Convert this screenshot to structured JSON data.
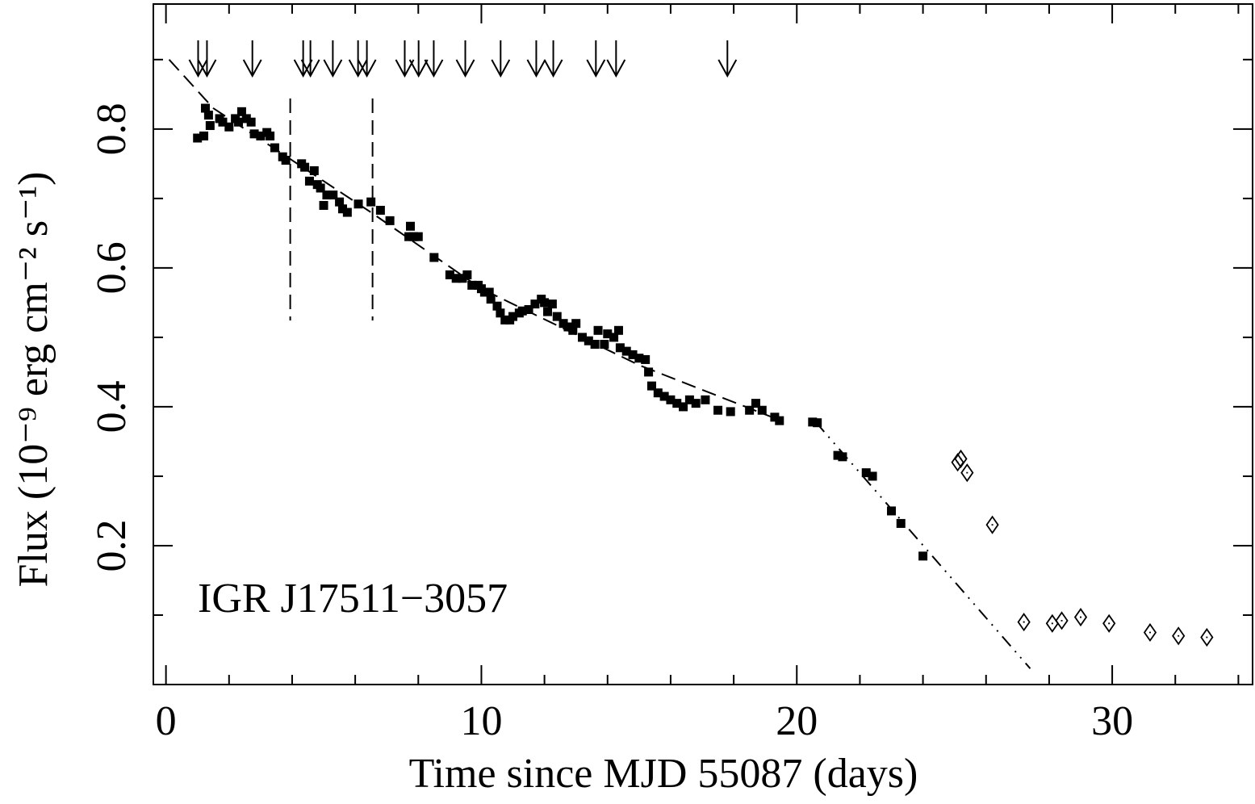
{
  "chart_data": {
    "type": "scatter",
    "xlabel": "Time since MJD 55087 (days)",
    "ylabel": "Flux (10⁻⁹ erg cm⁻² s⁻¹)",
    "annotation": "IGR J17511−3057",
    "xlim": [
      -0.4,
      34.45
    ],
    "ylim": [
      0,
      0.98
    ],
    "xticks": [
      0,
      10,
      20,
      30
    ],
    "xminorticks": [
      2,
      4,
      6,
      8,
      12,
      14,
      16,
      18,
      22,
      24,
      26,
      28,
      32,
      34
    ],
    "yticks": [
      0.2,
      0.4,
      0.6,
      0.8
    ],
    "yminorticks": [
      0.1,
      0.3,
      0.5,
      0.7,
      0.9
    ],
    "series": [
      {
        "marker": "square",
        "color": "#000000",
        "x": [
          1.0,
          1.2,
          1.25,
          1.35,
          1.4,
          1.7,
          1.8,
          2.0,
          2.2,
          2.3,
          2.4,
          2.55,
          2.7,
          2.8,
          3.0,
          3.2,
          3.3,
          3.45,
          3.7,
          3.8,
          4.3,
          4.4,
          4.55,
          4.7,
          4.8,
          4.9,
          5.0,
          5.1,
          5.3,
          5.5,
          5.6,
          5.75,
          6.1,
          6.5,
          6.8,
          7.1,
          7.7,
          7.75,
          7.85,
          8.0,
          8.5,
          9.0,
          9.2,
          9.4,
          9.55,
          9.7,
          9.9,
          10.0,
          10.1,
          10.25,
          10.3,
          10.5,
          10.6,
          10.75,
          10.9,
          11.0,
          11.2,
          11.3,
          11.5,
          11.7,
          11.9,
          12.0,
          12.1,
          12.25,
          12.4,
          12.6,
          12.75,
          12.9,
          13.0,
          13.2,
          13.4,
          13.6,
          13.7,
          13.9,
          14.0,
          14.2,
          14.35,
          14.4,
          14.6,
          14.8,
          15.0,
          15.2,
          15.3,
          15.4,
          15.6,
          15.8,
          16.0,
          16.2,
          16.4,
          16.6,
          16.8,
          17.1,
          17.5,
          17.9,
          18.5,
          18.7,
          18.9,
          19.3,
          19.45,
          20.5,
          20.65,
          21.3,
          21.45,
          22.2,
          22.4,
          23.0,
          23.3,
          24.0
        ],
        "values": [
          0.787,
          0.79,
          0.83,
          0.82,
          0.805,
          0.815,
          0.81,
          0.803,
          0.815,
          0.81,
          0.825,
          0.815,
          0.81,
          0.793,
          0.79,
          0.795,
          0.79,
          0.773,
          0.76,
          0.755,
          0.75,
          0.745,
          0.725,
          0.74,
          0.72,
          0.715,
          0.69,
          0.705,
          0.705,
          0.695,
          0.685,
          0.68,
          0.692,
          0.695,
          0.683,
          0.668,
          0.645,
          0.66,
          0.645,
          0.645,
          0.615,
          0.59,
          0.585,
          0.585,
          0.59,
          0.575,
          0.575,
          0.57,
          0.565,
          0.565,
          0.555,
          0.545,
          0.535,
          0.525,
          0.525,
          0.53,
          0.535,
          0.538,
          0.54,
          0.548,
          0.555,
          0.55,
          0.537,
          0.548,
          0.53,
          0.52,
          0.515,
          0.51,
          0.52,
          0.5,
          0.495,
          0.49,
          0.51,
          0.49,
          0.505,
          0.5,
          0.51,
          0.485,
          0.48,
          0.475,
          0.47,
          0.468,
          0.45,
          0.43,
          0.42,
          0.415,
          0.41,
          0.405,
          0.4,
          0.41,
          0.405,
          0.41,
          0.395,
          0.393,
          0.395,
          0.405,
          0.395,
          0.385,
          0.38,
          0.378,
          0.377,
          0.33,
          0.328,
          0.305,
          0.3,
          0.25,
          0.232,
          0.185
        ]
      },
      {
        "marker": "diamond",
        "color": "#000000",
        "x": [
          25.1,
          25.2,
          25.4,
          26.2,
          27.2,
          28.1,
          28.4,
          29.0,
          29.9,
          31.2,
          32.1,
          33.0
        ],
        "values": [
          0.32,
          0.325,
          0.305,
          0.23,
          0.09,
          0.088,
          0.092,
          0.097,
          0.088,
          0.075,
          0.07,
          0.068
        ]
      }
    ],
    "fits": [
      {
        "dash": "18 9",
        "x": [
          0.1,
          1.5,
          4.0,
          6.5,
          10.0,
          15.0,
          19.5
        ],
        "values": [
          0.9,
          0.83,
          0.755,
          0.68,
          0.57,
          0.46,
          0.38
        ]
      },
      {
        "dash": "16 8 2 8 2 8",
        "x": [
          20.6,
          27.4
        ],
        "values": [
          0.378,
          0.023
        ]
      }
    ],
    "vlines_x": [
      3.94,
      6.55
    ],
    "arrows_x": [
      1.02,
      1.3,
      2.74,
      4.35,
      4.58,
      5.29,
      6.09,
      6.37,
      7.57,
      8.01,
      8.49,
      9.49,
      10.61,
      11.74,
      12.28,
      13.63,
      14.27,
      17.8
    ]
  }
}
